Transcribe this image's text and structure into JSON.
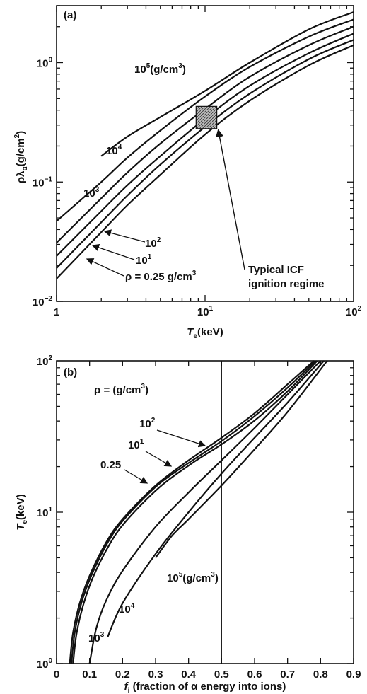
{
  "chart_data": [
    {
      "panel": "(a)",
      "type": "line",
      "xscale": "log",
      "yscale": "log",
      "xlim": [
        1,
        100
      ],
      "ylim": [
        0.01,
        3
      ],
      "xlabel": "T_e(keV)",
      "ylabel": "ρλ_α(g/cm²)",
      "x_ticks": [
        {
          "m": "10",
          "e": "0"
        },
        {
          "m": "10",
          "e": "1"
        },
        {
          "m": "10",
          "e": "2"
        }
      ],
      "x_tick_plain": [
        "1"
      ],
      "y_ticks": [
        {
          "m": "10",
          "e": "−2"
        },
        {
          "m": "10",
          "e": "−1"
        },
        {
          "m": "10",
          "e": "0"
        }
      ],
      "series": [
        {
          "name": "ρ = 0.25 g/cm³",
          "x": [
            1,
            2,
            3,
            5,
            10,
            20,
            50,
            100
          ],
          "y": [
            0.0155,
            0.038,
            0.064,
            0.115,
            0.25,
            0.48,
            0.95,
            1.4
          ]
        },
        {
          "name": "10¹",
          "x": [
            1,
            2,
            3,
            5,
            10,
            20,
            50,
            100
          ],
          "y": [
            0.019,
            0.046,
            0.077,
            0.14,
            0.29,
            0.55,
            1.07,
            1.55
          ]
        },
        {
          "name": "10²",
          "x": [
            1,
            2,
            3,
            5,
            10,
            20,
            50,
            100
          ],
          "y": [
            0.024,
            0.057,
            0.094,
            0.165,
            0.34,
            0.64,
            1.2,
            1.75
          ]
        },
        {
          "name": "10³",
          "x": [
            1,
            2,
            3,
            5,
            10,
            20,
            50,
            100
          ],
          "y": [
            0.031,
            0.073,
            0.12,
            0.21,
            0.41,
            0.76,
            1.4,
            2.0
          ]
        },
        {
          "name": "10⁴",
          "x": [
            1,
            2,
            3,
            5,
            10,
            20,
            50,
            100
          ],
          "y": [
            0.047,
            0.1,
            0.16,
            0.27,
            0.52,
            0.92,
            1.65,
            2.3
          ]
        },
        {
          "name": "10⁵(g/cm³)",
          "x": [
            2,
            3,
            5,
            10,
            20,
            50,
            100
          ],
          "y": [
            0.165,
            0.24,
            0.35,
            0.58,
            1.0,
            1.9,
            2.65
          ]
        }
      ],
      "annotations": [
        {
          "text_lines": [
            "Typical ICF",
            "ignition regime"
          ],
          "region": {
            "x": [
              8.7,
              12
            ],
            "y": [
              0.28,
              0.43
            ]
          }
        }
      ],
      "labels": {
        "r5": {
          "m": "10",
          "e": "5",
          "rest": "(g/cm",
          "e2": "3",
          "end": ")"
        },
        "r4": {
          "m": "10",
          "e": "4"
        },
        "r3": {
          "m": "10",
          "e": "3"
        },
        "r2": {
          "m": "10",
          "e": "2"
        },
        "r1": {
          "m": "10",
          "e": "1"
        },
        "r0": {
          "text": "ρ = 0.25 g/cm",
          "e": "3"
        }
      }
    },
    {
      "panel": "(b)",
      "type": "line",
      "xscale": "linear",
      "yscale": "log",
      "xlim": [
        0,
        0.9
      ],
      "ylim": [
        1,
        100
      ],
      "xlabel": "f_i (fraction of α energy into ions)",
      "ylabel": "T_e(keV)",
      "x_ticks": [
        "0",
        "0.1",
        "0.2",
        "0.3",
        "0.4",
        "0.5",
        "0.6",
        "0.7",
        "0.8",
        "0.9"
      ],
      "y_ticks": [
        {
          "m": "10",
          "e": "0"
        },
        {
          "m": "10",
          "e": "1"
        },
        {
          "m": "10",
          "e": "2"
        }
      ],
      "vline_x": 0.5,
      "series": [
        {
          "name": "0.25",
          "x": [
            0.04,
            0.05,
            0.07,
            0.1,
            0.15,
            0.2,
            0.3,
            0.4,
            0.5,
            0.6,
            0.7,
            0.78
          ],
          "y": [
            1,
            1.6,
            2.5,
            3.8,
            6.3,
            9.0,
            15.0,
            22.0,
            31.0,
            45.0,
            70.0,
            100
          ]
        },
        {
          "name": "10¹",
          "x": [
            0.045,
            0.055,
            0.075,
            0.105,
            0.155,
            0.205,
            0.305,
            0.405,
            0.505,
            0.605,
            0.705,
            0.785
          ],
          "y": [
            1,
            1.6,
            2.5,
            3.8,
            6.3,
            9.0,
            15.0,
            21.5,
            30.0,
            44.0,
            68.0,
            100
          ]
        },
        {
          "name": "10²",
          "x": [
            0.05,
            0.06,
            0.08,
            0.11,
            0.16,
            0.21,
            0.31,
            0.41,
            0.51,
            0.61,
            0.71,
            0.79
          ],
          "y": [
            1,
            1.55,
            2.4,
            3.7,
            6.1,
            8.7,
            14.5,
            21.0,
            29.0,
            42.0,
            66.0,
            100
          ]
        },
        {
          "name": "10³",
          "x": [
            0.1,
            0.12,
            0.15,
            0.2,
            0.3,
            0.4,
            0.5,
            0.6,
            0.7,
            0.8
          ],
          "y": [
            1,
            1.7,
            2.6,
            4.1,
            8.0,
            13.5,
            22.0,
            36.0,
            60.0,
            100
          ]
        },
        {
          "name": "10⁴",
          "x": [
            0.155,
            0.2,
            0.3,
            0.4,
            0.5,
            0.6,
            0.7,
            0.81
          ],
          "y": [
            1.5,
            2.5,
            5.3,
            10.0,
            18.0,
            31.0,
            53.0,
            100
          ]
        },
        {
          "name": "10⁵(g/cm³)",
          "x": [
            0.3,
            0.35,
            0.4,
            0.5,
            0.6,
            0.7,
            0.82
          ],
          "y": [
            5.0,
            7.0,
            9.0,
            15.0,
            26.0,
            46.0,
            100
          ]
        }
      ],
      "labels": {
        "head": {
          "text": "ρ = (g/cm",
          "e": "3",
          "end": ")"
        },
        "r2": {
          "m": "10",
          "e": "2"
        },
        "r1": {
          "m": "10",
          "e": "1"
        },
        "r0": {
          "text": "0.25"
        },
        "r5": {
          "m": "10",
          "e": "5",
          "rest": "(g/cm",
          "e2": "3",
          "end": ")"
        },
        "r4": {
          "m": "10",
          "e": "4"
        },
        "r3": {
          "m": "10",
          "e": "3"
        }
      }
    }
  ]
}
